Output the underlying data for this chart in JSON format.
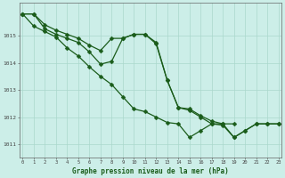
{
  "title": "Graphe pression niveau de la mer (hPa)",
  "bg_color": "#cceee8",
  "grid_color": "#aad8cc",
  "line_color": "#1a5c1a",
  "x_ticks": [
    0,
    1,
    2,
    3,
    4,
    5,
    6,
    7,
    8,
    9,
    10,
    11,
    12,
    13,
    14,
    15,
    16,
    17,
    18,
    19,
    20,
    21,
    22,
    23
  ],
  "y_ticks": [
    1011,
    1012,
    1013,
    1014,
    1015
  ],
  "ylim": [
    1010.5,
    1016.2
  ],
  "xlim": [
    -0.3,
    23.3
  ],
  "series1_x": [
    0,
    1,
    2,
    3,
    4,
    5,
    6,
    7,
    8,
    9,
    10,
    11,
    12,
    13,
    14,
    15,
    16,
    17,
    18,
    19,
    20,
    21,
    22,
    23
  ],
  "series1_y": [
    1015.8,
    1015.8,
    1015.4,
    1015.2,
    1015.05,
    1014.9,
    1014.65,
    1014.45,
    1014.9,
    1014.9,
    1015.05,
    1015.05,
    1014.75,
    1013.35,
    1012.35,
    1012.3,
    1012.05,
    1011.85,
    1011.75,
    1011.25,
    1011.5,
    1011.75,
    1011.75,
    1011.75
  ],
  "series2_x": [
    0,
    1,
    2,
    3,
    4,
    5,
    6,
    7,
    8,
    9,
    10,
    11,
    12,
    13,
    14,
    15,
    16,
    17,
    18,
    19,
    20,
    21,
    22,
    23
  ],
  "series2_y": [
    1015.8,
    1015.8,
    1015.25,
    1015.05,
    1014.9,
    1014.75,
    1014.4,
    1013.95,
    1014.05,
    1014.9,
    1015.05,
    1015.05,
    1014.7,
    1013.35,
    1012.35,
    1012.25,
    1012.0,
    1011.75,
    1011.7,
    1011.25,
    1011.5,
    1011.75,
    1011.75,
    1011.75
  ],
  "series3_x": [
    0,
    1,
    2,
    3,
    4,
    5,
    6,
    7,
    8,
    9,
    10,
    11,
    12,
    13,
    14,
    15,
    16,
    17,
    18,
    19
  ],
  "series3_y": [
    1015.8,
    1015.35,
    1015.15,
    1014.95,
    1014.55,
    1014.25,
    1013.85,
    1013.5,
    1013.2,
    1012.75,
    1012.3,
    1012.2,
    1012.0,
    1011.8,
    1011.75,
    1011.25,
    1011.5,
    1011.75,
    1011.75,
    1011.75
  ]
}
